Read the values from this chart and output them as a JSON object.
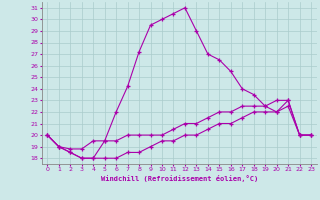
{
  "xlabel": "Windchill (Refroidissement éolien,°C)",
  "xlim": [
    -0.5,
    23.5
  ],
  "ylim": [
    17.5,
    31.5
  ],
  "xticks": [
    0,
    1,
    2,
    3,
    4,
    5,
    6,
    7,
    8,
    9,
    10,
    11,
    12,
    13,
    14,
    15,
    16,
    17,
    18,
    19,
    20,
    21,
    22,
    23
  ],
  "yticks": [
    18,
    19,
    20,
    21,
    22,
    23,
    24,
    25,
    26,
    27,
    28,
    29,
    30,
    31
  ],
  "bg_color": "#cde8e8",
  "line_color": "#aa00aa",
  "grid_color": "#aacccc",
  "line1_x": [
    0,
    1,
    2,
    3,
    4,
    5,
    6,
    7,
    8,
    9,
    10,
    11,
    12,
    13,
    14,
    15,
    16,
    17,
    18,
    19,
    20,
    21,
    22,
    23
  ],
  "line1_y": [
    20,
    19,
    18.5,
    18,
    18,
    19.5,
    22,
    24.2,
    27.2,
    29.5,
    30,
    30.5,
    31,
    29,
    27,
    26.5,
    25.5,
    24,
    23.5,
    22.5,
    22,
    23,
    20,
    20
  ],
  "line2_x": [
    0,
    1,
    2,
    3,
    4,
    5,
    6,
    7,
    8,
    9,
    10,
    11,
    12,
    13,
    14,
    15,
    16,
    17,
    18,
    19,
    20,
    21,
    22,
    23
  ],
  "line2_y": [
    20,
    19,
    18.8,
    18.8,
    19.5,
    19.5,
    19.5,
    20,
    20,
    20,
    20,
    20.5,
    21,
    21,
    21.5,
    22,
    22,
    22.5,
    22.5,
    22.5,
    23,
    23,
    20,
    20
  ],
  "line3_x": [
    0,
    1,
    2,
    3,
    4,
    5,
    6,
    7,
    8,
    9,
    10,
    11,
    12,
    13,
    14,
    15,
    16,
    17,
    18,
    19,
    20,
    21,
    22,
    23
  ],
  "line3_y": [
    20,
    19,
    18.5,
    18,
    18,
    18,
    18,
    18.5,
    18.5,
    19,
    19.5,
    19.5,
    20,
    20,
    20.5,
    21,
    21,
    21.5,
    22,
    22,
    22,
    22.5,
    20,
    20
  ]
}
